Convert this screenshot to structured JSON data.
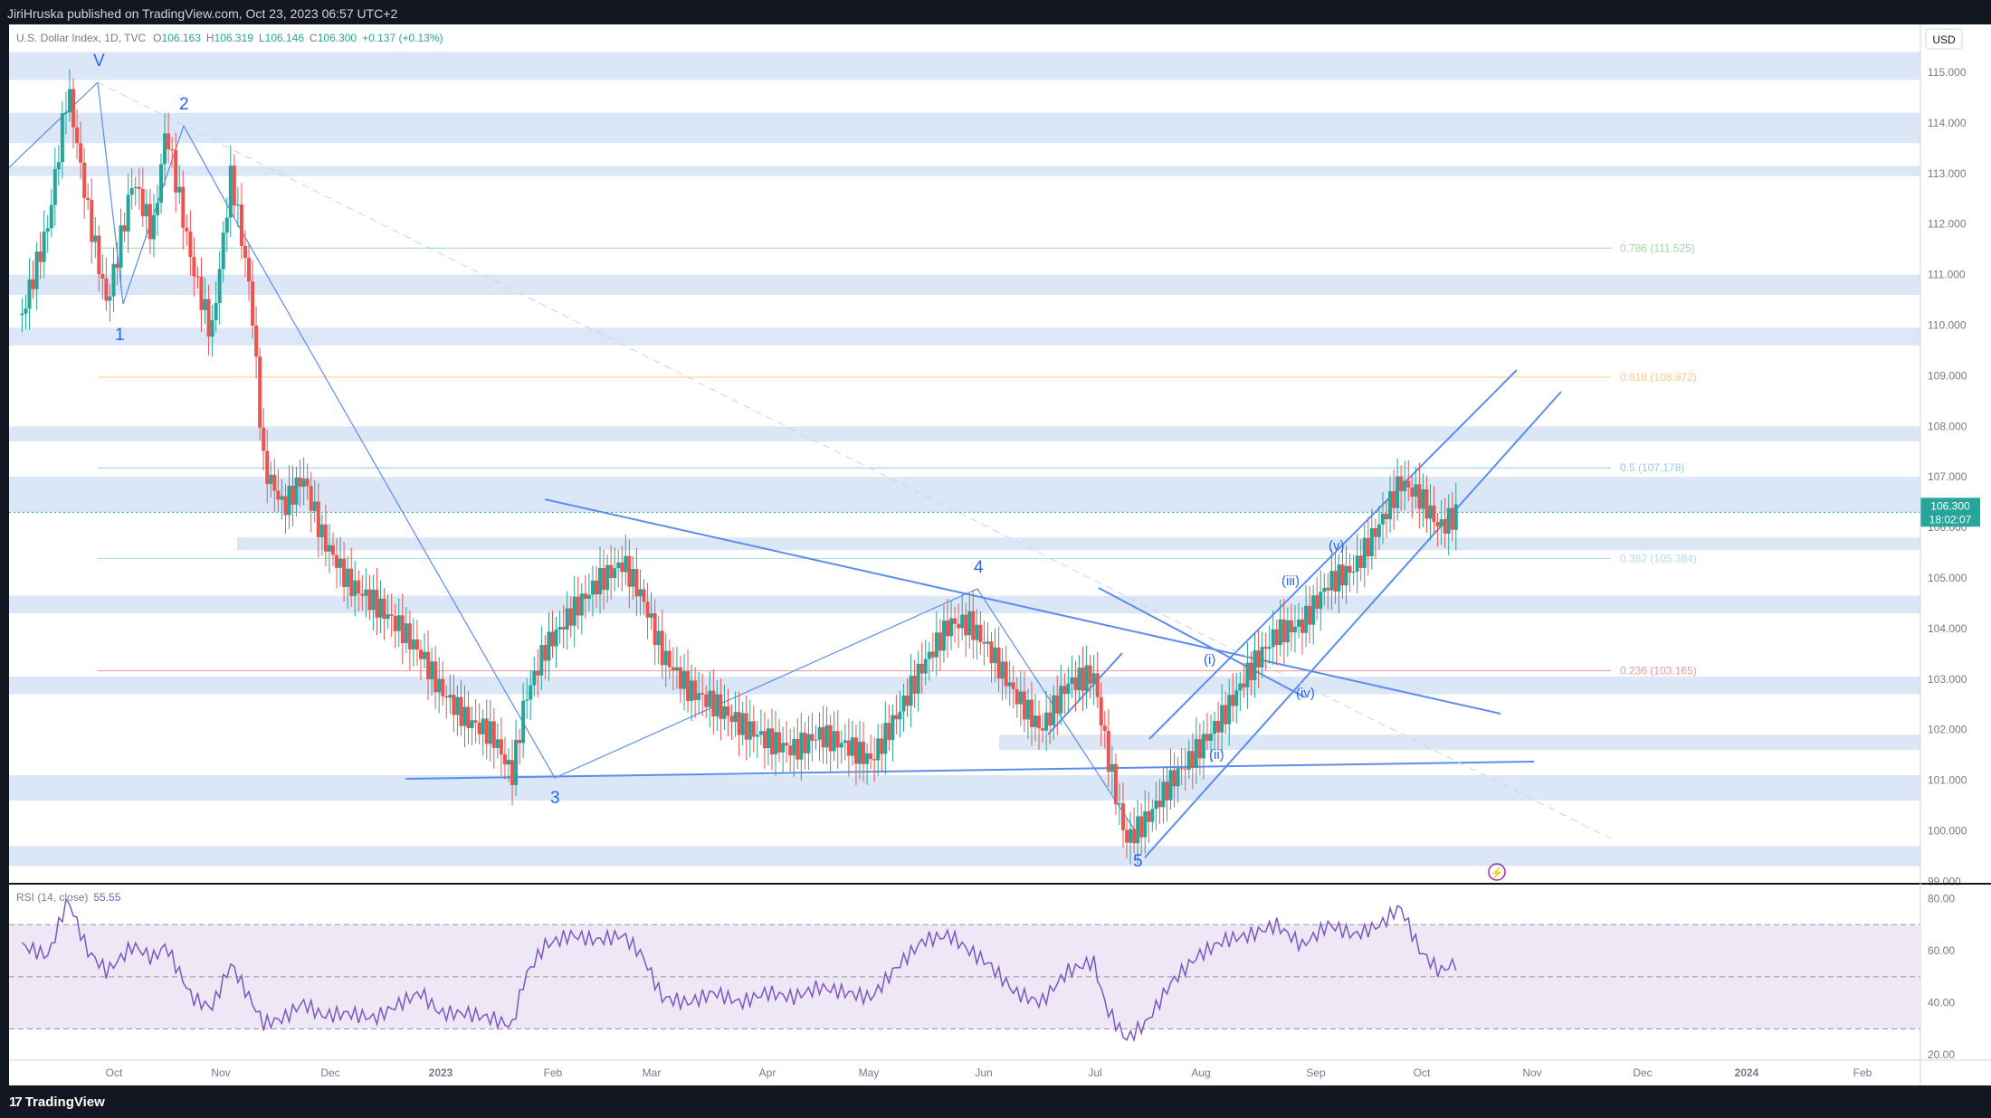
{
  "header": {
    "publisher": "JiriHruska published on TradingView.com, Oct 23, 2023 06:57 UTC+2"
  },
  "legend": {
    "symbol": "U.S. Dollar Index, 1D, TVC",
    "open_label": "O",
    "open": "106.163",
    "high_label": "H",
    "high": "106.319",
    "low_label": "L",
    "low": "106.146",
    "close_label": "C",
    "close": "106.300",
    "change": "+0.137 (+0.13%)"
  },
  "currency_button": "USD",
  "price_tag": {
    "price": "106.300",
    "countdown": "18:02:07"
  },
  "rsi_legend": {
    "label": "RSI (14, close)",
    "value": "55.55"
  },
  "footer": {
    "brand": "TradingView"
  },
  "colors": {
    "bull": "#26a69a",
    "bear": "#ef5350",
    "wave_blue": "#2962ff",
    "zone": "#dbe6f7",
    "rsi_line": "#7e57c2",
    "rsi_band": "#ede7f6",
    "tag_bg": "#26a69a"
  },
  "chart_data": [
    {
      "type": "line",
      "title": "U.S. Dollar Index, 1D, TVC",
      "y_axis": {
        "currency": "USD",
        "ticks": [
          "115.000",
          "114.000",
          "113.000",
          "112.000",
          "111.000",
          "110.000",
          "109.000",
          "108.000",
          "107.000",
          "106.000",
          "105.000",
          "104.000",
          "103.000",
          "102.000",
          "101.000",
          "100.000",
          "99.000"
        ],
        "range": [
          98.6,
          115.9
        ]
      },
      "x_axis": {
        "ticks": [
          "Oct",
          "Nov",
          "Dec",
          "2023",
          "Feb",
          "Mar",
          "Apr",
          "May",
          "Jun",
          "Jul",
          "Aug",
          "Sep",
          "Oct",
          "Nov",
          "Dec",
          "2024",
          "Feb"
        ]
      },
      "series": [
        {
          "values": [
            [
              2022.7,
              110.2
            ],
            [
              2022.72,
              112.0
            ],
            [
              2022.735,
              114.7
            ],
            [
              2022.75,
              112.3
            ],
            [
              2022.765,
              110.4
            ],
            [
              2022.785,
              112.9
            ],
            [
              2022.8,
              111.8
            ],
            [
              2022.81,
              113.9
            ],
            [
              2022.83,
              111.2
            ],
            [
              2022.845,
              109.8
            ],
            [
              2022.86,
              113.0
            ],
            [
              2022.875,
              110.6
            ],
            [
              2022.885,
              107.2
            ],
            [
              2022.9,
              106.4
            ],
            [
              2022.915,
              107.0
            ],
            [
              2022.93,
              105.8
            ],
            [
              2022.95,
              104.9
            ],
            [
              2022.97,
              104.5
            ],
            [
              2022.99,
              104.0
            ],
            [
              2023.005,
              103.5
            ],
            [
              2023.02,
              102.8
            ],
            [
              2023.04,
              102.2
            ],
            [
              2023.06,
              101.9
            ],
            [
              2023.075,
              101.1
            ],
            [
              2023.085,
              102.6
            ],
            [
              2023.1,
              103.6
            ],
            [
              2023.12,
              104.3
            ],
            [
              2023.14,
              104.9
            ],
            [
              2023.16,
              105.3
            ],
            [
              2023.175,
              104.6
            ],
            [
              2023.19,
              103.5
            ],
            [
              2023.21,
              102.8
            ],
            [
              2023.23,
              102.5
            ],
            [
              2023.25,
              102.1
            ],
            [
              2023.27,
              101.8
            ],
            [
              2023.29,
              101.6
            ],
            [
              2023.31,
              101.9
            ],
            [
              2023.33,
              101.7
            ],
            [
              2023.35,
              101.4
            ],
            [
              2023.37,
              102.3
            ],
            [
              2023.39,
              103.3
            ],
            [
              2023.41,
              104.1
            ],
            [
              2023.425,
              104.1
            ],
            [
              2023.44,
              103.6
            ],
            [
              2023.46,
              102.7
            ],
            [
              2023.48,
              102.0
            ],
            [
              2023.5,
              102.9
            ],
            [
              2023.52,
              103.1
            ],
            [
              2023.53,
              101.6
            ],
            [
              2023.545,
              99.8
            ],
            [
              2023.56,
              100.2
            ],
            [
              2023.58,
              101.0
            ],
            [
              2023.6,
              101.6
            ],
            [
              2023.62,
              102.3
            ],
            [
              2023.64,
              103.2
            ],
            [
              2023.66,
              103.9
            ],
            [
              2023.68,
              104.1
            ],
            [
              2023.7,
              104.9
            ],
            [
              2023.72,
              105.2
            ],
            [
              2023.74,
              106.1
            ],
            [
              2023.755,
              106.9
            ],
            [
              2023.77,
              106.6
            ],
            [
              2023.785,
              106.0
            ],
            [
              2023.8,
              106.3
            ]
          ]
        }
      ],
      "levels": [
        {
          "label": "0.786 (111.525)",
          "value": 111.525,
          "color": "#a5d6a7"
        },
        {
          "label": "0.618 (108.972)",
          "value": 108.972,
          "color": "#ffcc80"
        },
        {
          "label": "0.5 (107.178)",
          "value": 107.178,
          "color": "#90caf9"
        },
        {
          "label": "0.382 (105.384)",
          "value": 105.384,
          "color": "#b2dfdb"
        },
        {
          "label": "0.236 (103.165)",
          "value": 103.165,
          "color": "#ef9a9a"
        }
      ],
      "wave_labels": [
        "V",
        "1",
        "2",
        "3",
        "4",
        "5",
        "(i)",
        "(ii)",
        "(iii)",
        "(iv)",
        "(v)"
      ]
    },
    {
      "type": "line",
      "title": "RSI (14, close)",
      "y_axis": {
        "ticks": [
          "80.00",
          "60.00",
          "40.00",
          "20.00"
        ],
        "range": [
          18,
          84
        ]
      },
      "bands": [
        30,
        50,
        70
      ],
      "series": [
        {
          "name": "RSI",
          "values": [
            [
              2022.7,
              62
            ],
            [
              2022.72,
              58
            ],
            [
              2022.735,
              80
            ],
            [
              2022.75,
              60
            ],
            [
              2022.765,
              52
            ],
            [
              2022.785,
              62
            ],
            [
              2022.8,
              57
            ],
            [
              2022.81,
              62
            ],
            [
              2022.83,
              42
            ],
            [
              2022.845,
              38
            ],
            [
              2022.86,
              55
            ],
            [
              2022.875,
              41
            ],
            [
              2022.885,
              32
            ],
            [
              2022.9,
              34
            ],
            [
              2022.915,
              40
            ],
            [
              2022.93,
              35
            ],
            [
              2022.95,
              36
            ],
            [
              2022.97,
              34
            ],
            [
              2022.99,
              40
            ],
            [
              2023.005,
              44
            ],
            [
              2023.02,
              36
            ],
            [
              2023.04,
              36
            ],
            [
              2023.06,
              34
            ],
            [
              2023.075,
              31
            ],
            [
              2023.085,
              50
            ],
            [
              2023.1,
              62
            ],
            [
              2023.12,
              66
            ],
            [
              2023.14,
              64
            ],
            [
              2023.16,
              66
            ],
            [
              2023.175,
              58
            ],
            [
              2023.19,
              42
            ],
            [
              2023.21,
              40
            ],
            [
              2023.23,
              44
            ],
            [
              2023.25,
              40
            ],
            [
              2023.27,
              44
            ],
            [
              2023.29,
              42
            ],
            [
              2023.31,
              46
            ],
            [
              2023.33,
              44
            ],
            [
              2023.35,
              42
            ],
            [
              2023.37,
              54
            ],
            [
              2023.39,
              64
            ],
            [
              2023.41,
              66
            ],
            [
              2023.425,
              60
            ],
            [
              2023.44,
              55
            ],
            [
              2023.46,
              44
            ],
            [
              2023.48,
              40
            ],
            [
              2023.5,
              52
            ],
            [
              2023.52,
              56
            ],
            [
              2023.53,
              38
            ],
            [
              2023.545,
              26
            ],
            [
              2023.56,
              32
            ],
            [
              2023.58,
              48
            ],
            [
              2023.6,
              58
            ],
            [
              2023.62,
              64
            ],
            [
              2023.64,
              66
            ],
            [
              2023.66,
              70
            ],
            [
              2023.68,
              62
            ],
            [
              2023.7,
              70
            ],
            [
              2023.72,
              66
            ],
            [
              2023.74,
              70
            ],
            [
              2023.755,
              77
            ],
            [
              2023.77,
              60
            ],
            [
              2023.785,
              52
            ],
            [
              2023.8,
              56
            ]
          ]
        }
      ]
    }
  ]
}
